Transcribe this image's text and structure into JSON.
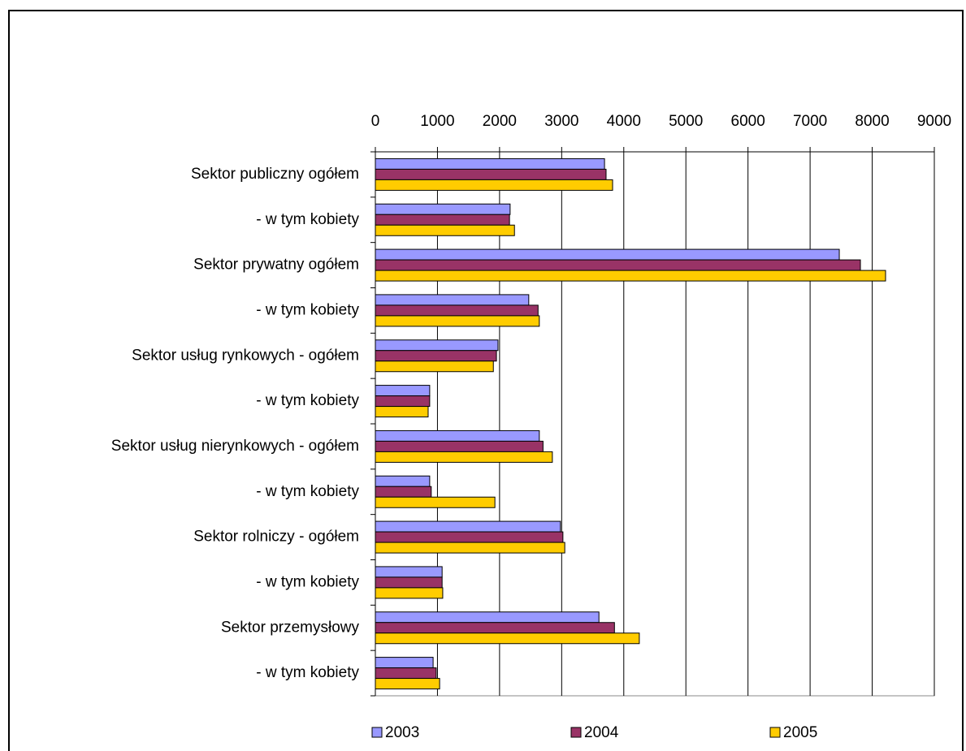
{
  "chart_data": {
    "type": "barh",
    "categories": [
      "Sektor publiczny ogółem",
      "- w tym kobiety",
      "Sektor prywatny ogółem",
      "- w tym kobiety",
      "Sektor usług rynkowych - ogółem",
      "- w tym kobiety",
      "Sektor usług nierynkowych - ogółem",
      "- w tym kobiety",
      "Sektor rolniczy - ogółem",
      "- w tym kobiety",
      "Sektor przemysłowy",
      "- w tym kobiety"
    ],
    "series": [
      {
        "name": "2003",
        "color": "#9999ff",
        "values": [
          3690,
          2170,
          7470,
          2470,
          1975,
          875,
          2640,
          875,
          2980,
          1075,
          3600,
          930
        ]
      },
      {
        "name": "2004",
        "color": "#993366",
        "values": [
          3715,
          2160,
          7810,
          2620,
          1950,
          875,
          2700,
          900,
          3020,
          1075,
          3850,
          980
        ]
      },
      {
        "name": "2005",
        "color": "#ffcc00",
        "values": [
          3820,
          2240,
          8215,
          2640,
          1900,
          850,
          2850,
          1925,
          3050,
          1085,
          4250,
          1035
        ]
      }
    ],
    "xlim": [
      0,
      9000
    ],
    "xticks": [
      0,
      1000,
      2000,
      3000,
      4000,
      5000,
      6000,
      7000,
      8000,
      9000
    ],
    "grid": true,
    "legend": "bottom"
  }
}
